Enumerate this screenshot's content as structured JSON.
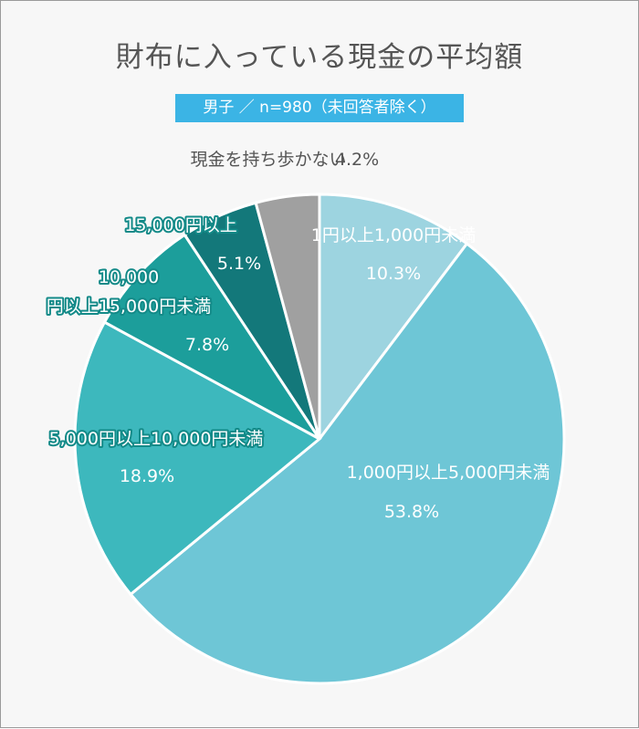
{
  "title": "財布に入っている現金の平均額",
  "subtitle": "男子 ／ n=980（未回答者除く）",
  "chart_data": {
    "type": "pie",
    "title": "財布に入っている現金の平均額",
    "subtitle": "男子 ／ n=980（未回答者除く）",
    "start": "12 o'clock, clockwise",
    "slices": [
      {
        "label": "1円以上1,000円未満",
        "value": 10.3,
        "value_label": "10.3%",
        "color": "#9dd4e0"
      },
      {
        "label": "1,000円以上5,000円未満",
        "value": 53.8,
        "value_label": "53.8%",
        "color": "#6ec6d6"
      },
      {
        "label": "5,000円以上10,000円未満",
        "value": 18.9,
        "value_label": "18.9%",
        "color": "#3db8bd"
      },
      {
        "label": "10,000円以上15,000円未満",
        "value": 7.8,
        "value_label": "7.8%",
        "color": "#1c9e9b"
      },
      {
        "label": "15,000円以上",
        "value": 5.1,
        "value_label": "5.1%",
        "color": "#13787a"
      },
      {
        "label": "現金を持ち歩かない",
        "value": 4.2,
        "value_label": "4.2%",
        "color": "#a0a0a0"
      }
    ]
  }
}
